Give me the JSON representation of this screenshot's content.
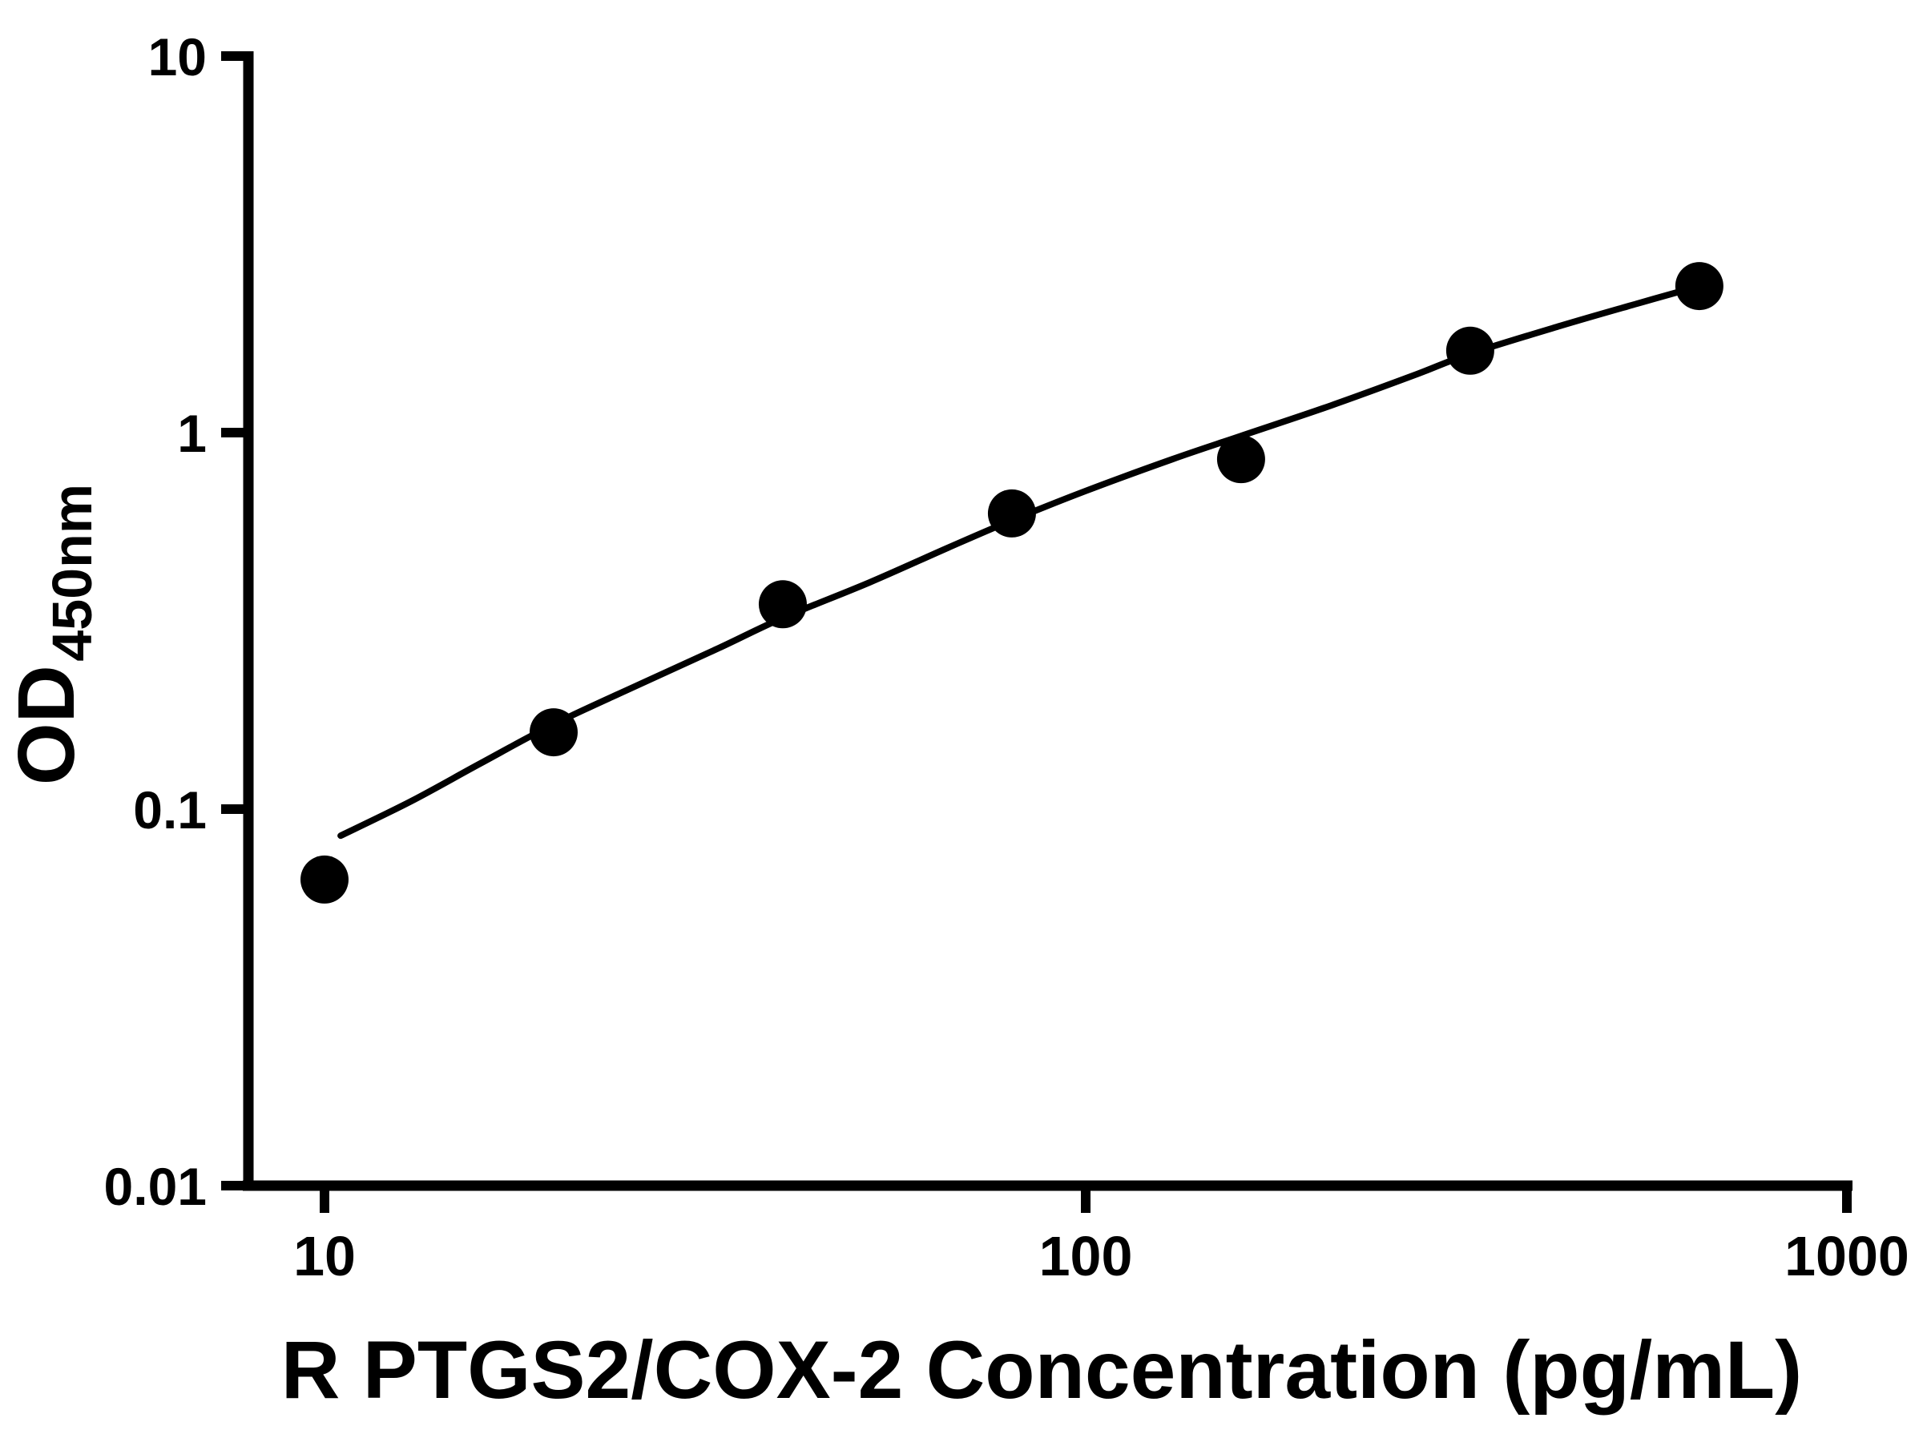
{
  "chart_data": {
    "type": "scatter",
    "title": "",
    "xlabel": "R PTGS2/COX-2 Concentration (pg/mL)",
    "ylabel_main": "OD",
    "ylabel_sub": "450nm",
    "x_scale": "log",
    "y_scale": "log",
    "xlim": [
      10,
      1000
    ],
    "ylim": [
      0.01,
      10
    ],
    "x_ticks": [
      10,
      100,
      1000
    ],
    "x_tick_labels": [
      "10",
      "100",
      "1000"
    ],
    "y_ticks": [
      0.01,
      0.1,
      1,
      10
    ],
    "y_tick_labels": [
      "0.01",
      "0.1",
      "1",
      "10"
    ],
    "grid": false,
    "legend": null,
    "points": [
      {
        "x": 10,
        "y": 0.065
      },
      {
        "x": 20,
        "y": 0.16
      },
      {
        "x": 40,
        "y": 0.35
      },
      {
        "x": 80,
        "y": 0.61
      },
      {
        "x": 160,
        "y": 0.85
      },
      {
        "x": 320,
        "y": 1.65
      },
      {
        "x": 640,
        "y": 2.45
      }
    ],
    "fit_curve": [
      {
        "x": 10.5,
        "y": 0.085
      },
      {
        "x": 13,
        "y": 0.105
      },
      {
        "x": 16,
        "y": 0.132
      },
      {
        "x": 20,
        "y": 0.168
      },
      {
        "x": 26,
        "y": 0.215
      },
      {
        "x": 33,
        "y": 0.268
      },
      {
        "x": 40,
        "y": 0.322
      },
      {
        "x": 52,
        "y": 0.4
      },
      {
        "x": 66,
        "y": 0.495
      },
      {
        "x": 80,
        "y": 0.585
      },
      {
        "x": 100,
        "y": 0.7
      },
      {
        "x": 130,
        "y": 0.85
      },
      {
        "x": 160,
        "y": 0.98
      },
      {
        "x": 210,
        "y": 1.18
      },
      {
        "x": 270,
        "y": 1.42
      },
      {
        "x": 320,
        "y": 1.62
      },
      {
        "x": 420,
        "y": 1.92
      },
      {
        "x": 530,
        "y": 2.2
      },
      {
        "x": 640,
        "y": 2.45
      }
    ],
    "colors": {
      "points": "#000000",
      "curve": "#000000",
      "axis": "#000000",
      "background": "#ffffff"
    }
  }
}
